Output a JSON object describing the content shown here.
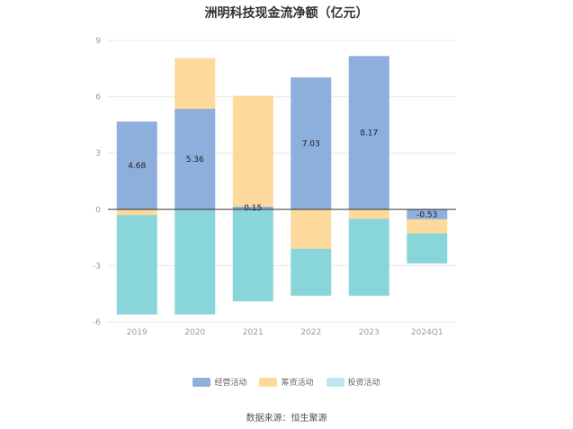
{
  "chart_data": {
    "type": "bar",
    "stacked": true,
    "title": "洲明科技现金流净额（亿元）",
    "categories": [
      "2019",
      "2020",
      "2021",
      "2022",
      "2023",
      "2024Q1"
    ],
    "y_ticks": [
      "9",
      "6",
      "3",
      "0",
      "-3",
      "-6"
    ],
    "ylim": [
      -6,
      9
    ],
    "grid": true,
    "legend_position": "bottom-center",
    "series": [
      {
        "name": "经营活动",
        "color": "#8eaedc",
        "values": [
          4.68,
          5.36,
          0.15,
          7.03,
          8.17,
          -0.53
        ],
        "labels": [
          "4.68",
          "5.36",
          "0.15",
          "7.03",
          "8.17",
          "-0.53"
        ]
      },
      {
        "name": "筹资活动",
        "color": "#fdd99b",
        "values": [
          -0.3,
          2.7,
          5.9,
          -2.1,
          -0.5,
          -0.75
        ]
      },
      {
        "name": "投资活动",
        "color": "#89d6da",
        "values": [
          -5.3,
          -5.6,
          -4.9,
          -2.5,
          -4.1,
          -1.6
        ]
      }
    ]
  },
  "source": "数据来源：恒生聚源"
}
